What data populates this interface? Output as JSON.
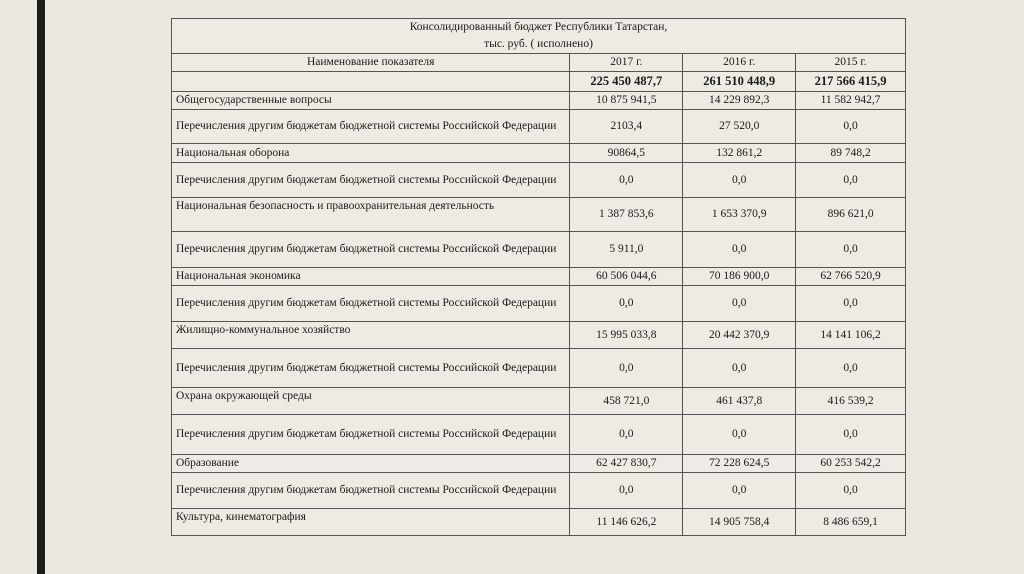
{
  "title_line1": "Консолидированный бюджет Республики Татарстан,",
  "title_line2": "тыс. руб. ( исполнено)",
  "headers": [
    "Наименование показателя",
    "2017 г.",
    "2016 г.",
    "2015 г."
  ],
  "totals": [
    "",
    "225 450 487,7",
    "261 510 448,9",
    "217 566 415,9"
  ],
  "rows": [
    {
      "name": "Общегосударственные вопросы",
      "v": [
        "10 875 941,5",
        "14 229 892,3",
        "11 582 942,7"
      ]
    },
    {
      "name": "Перечисления другим бюджетам бюджетной системы Российской Федерации",
      "v": [
        "2103,4",
        "27 520,0",
        "0,0"
      ]
    },
    {
      "name": "Национальная оборона",
      "v": [
        "90864,5",
        "132 861,2",
        "89 748,2"
      ]
    },
    {
      "name": "Перечисления другим бюджетам бюджетной системы Российской Федерации",
      "v": [
        "0,0",
        "0,0",
        "0,0"
      ]
    },
    {
      "name": "Национальная безопасность и правоохранительная деятельность",
      "v": [
        "1 387 853,6",
        "1 653 370,9",
        "896 621,0"
      ]
    },
    {
      "name": "Перечисления другим бюджетам бюджетной системы Российской Федерации",
      "v": [
        "5 911,0",
        "0,0",
        "0,0"
      ]
    },
    {
      "name": "Национальная экономика",
      "v": [
        "60 506 044,6",
        "70 186 900,0",
        "62 766 520,9"
      ]
    },
    {
      "name": "Перечисления другим бюджетам бюджетной системы Российской Федерации",
      "v": [
        "0,0",
        "0,0",
        "0,0"
      ]
    },
    {
      "name": "Жилищно-коммунальное хозяйство",
      "v": [
        "15 995 033,8",
        "20 442 370,9",
        "14 141 106,2"
      ]
    },
    {
      "name": "Перечисления другим бюджетам бюджетной системы Российской Федерации",
      "v": [
        "0,0",
        "0,0",
        "0,0"
      ]
    },
    {
      "name": "Охрана окружающей среды",
      "v": [
        "458 721,0",
        "461 437,8",
        "416 539,2"
      ]
    },
    {
      "name": "Перечисления другим бюджетам бюджетной системы Российской Федерации",
      "v": [
        "0,0",
        "0,0",
        "0,0"
      ]
    },
    {
      "name": "Образование",
      "v": [
        "62 427 830,7",
        "72 228 624,5",
        "60 253 542,2"
      ]
    },
    {
      "name": "Перечисления другим бюджетам бюджетной системы Российской Федерации",
      "v": [
        "0,0",
        "0,0",
        "0,0"
      ]
    },
    {
      "name": "Культура, кинематография",
      "v": [
        "11 146 626,2",
        "14 905 758,4",
        "8 486 659,1"
      ]
    }
  ]
}
